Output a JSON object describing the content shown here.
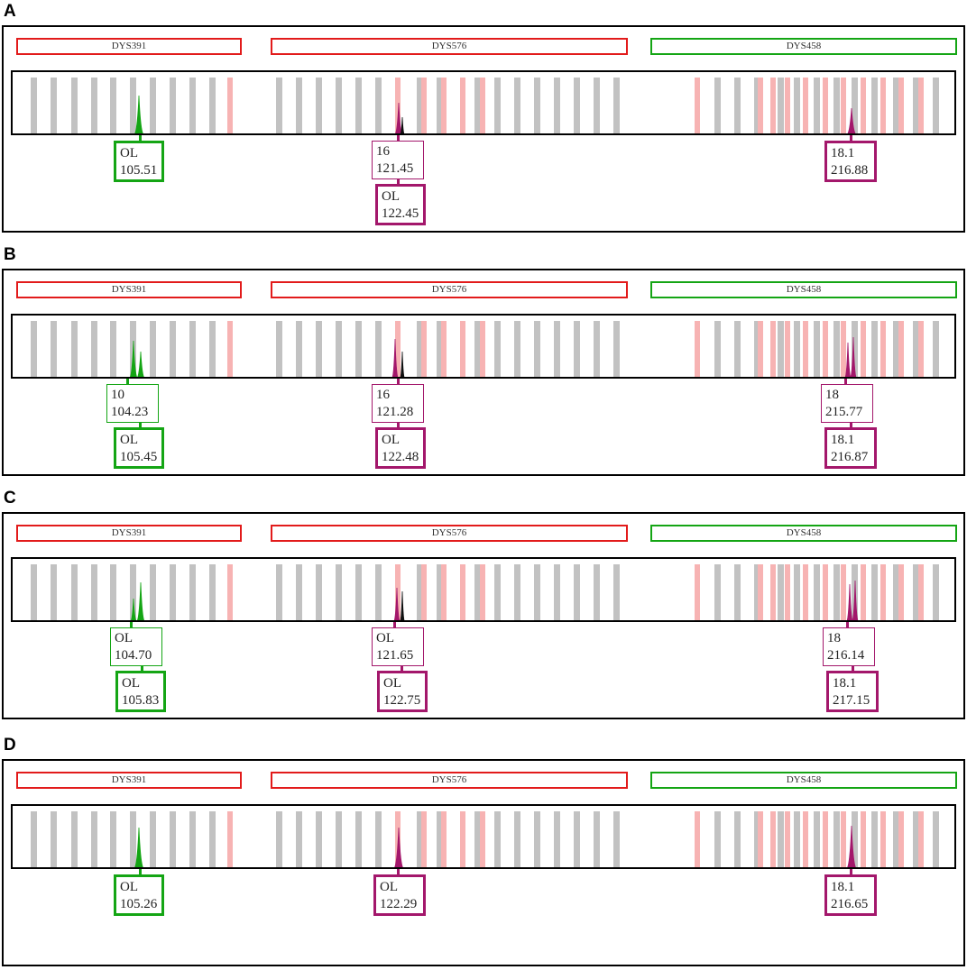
{
  "locus_labels": [
    "DYS391",
    "DYS576",
    "DYS458"
  ],
  "colors": {
    "locus_red": "#e21b1b",
    "locus_green": "#14a514",
    "bin_gray": "#c2c2c2",
    "bin_pink": "#f7b3b3",
    "peak_green": "#14a514",
    "peak_magenta": "#a3176b"
  },
  "panels": [
    {
      "letter": "A",
      "alleles": [
        {
          "allele": "OL",
          "size": "105.51",
          "color": "green",
          "strong": true
        },
        {
          "allele": "16",
          "size": "121.45",
          "color": "magenta",
          "strong": false
        },
        {
          "allele": "OL",
          "size": "122.45",
          "color": "magenta",
          "strong": true
        },
        {
          "allele": "18.1",
          "size": "216.88",
          "color": "magenta",
          "strong": true
        }
      ]
    },
    {
      "letter": "B",
      "alleles": [
        {
          "allele": "10",
          "size": "104.23",
          "color": "green",
          "strong": false
        },
        {
          "allele": "OL",
          "size": "105.45",
          "color": "green",
          "strong": true
        },
        {
          "allele": "16",
          "size": "121.28",
          "color": "magenta",
          "strong": false
        },
        {
          "allele": "OL",
          "size": "122.48",
          "color": "magenta",
          "strong": true
        },
        {
          "allele": "18",
          "size": "215.77",
          "color": "magenta",
          "strong": false
        },
        {
          "allele": "18.1",
          "size": "216.87",
          "color": "magenta",
          "strong": true
        }
      ]
    },
    {
      "letter": "C",
      "alleles": [
        {
          "allele": "OL",
          "size": "104.70",
          "color": "green",
          "strong": false
        },
        {
          "allele": "OL",
          "size": "105.83",
          "color": "green",
          "strong": true
        },
        {
          "allele": "OL",
          "size": "121.65",
          "color": "magenta",
          "strong": false
        },
        {
          "allele": "OL",
          "size": "122.75",
          "color": "magenta",
          "strong": true
        },
        {
          "allele": "18",
          "size": "216.14",
          "color": "magenta",
          "strong": false
        },
        {
          "allele": "18.1",
          "size": "217.15",
          "color": "magenta",
          "strong": true
        }
      ]
    },
    {
      "letter": "D",
      "alleles": [
        {
          "allele": "OL",
          "size": "105.26",
          "color": "green",
          "strong": true
        },
        {
          "allele": "OL",
          "size": "122.29",
          "color": "magenta",
          "strong": true
        },
        {
          "allele": "18.1",
          "size": "216.65",
          "color": "magenta",
          "strong": true
        }
      ]
    }
  ]
}
